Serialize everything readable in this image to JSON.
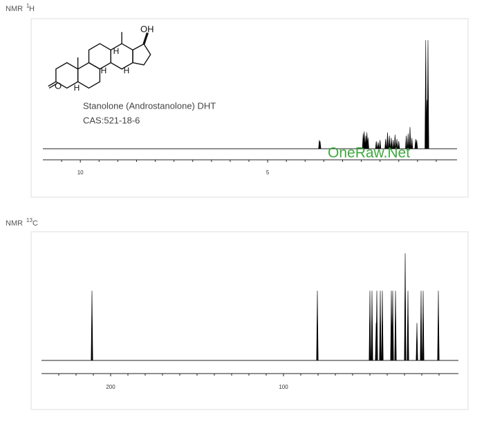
{
  "chart_data": [
    {
      "type": "spectrum",
      "label": "NMR",
      "mass_number": "1",
      "nucleus": "H",
      "compound": "Stanolone (Androstanolone) DHT",
      "cas": "CAS:521-18-6",
      "structure_labels": {
        "hydroxyl": "OH",
        "ketone": "O",
        "hydrogens": [
          "H",
          "H",
          "H",
          "H"
        ]
      },
      "watermark": "OneRaw.Net",
      "x": [
        3.62,
        3.6,
        2.45,
        2.42,
        2.38,
        2.35,
        2.32,
        2.1,
        2.05,
        2.0,
        1.85,
        1.8,
        1.75,
        1.7,
        1.65,
        1.6,
        1.55,
        1.5,
        1.3,
        1.25,
        1.2,
        1.15,
        1.05,
        1.02,
        0.78,
        0.75,
        0.72
      ],
      "values": [
        8,
        7,
        14,
        16,
        12,
        15,
        10,
        7,
        6,
        8,
        9,
        15,
        12,
        10,
        8,
        13,
        9,
        7,
        12,
        14,
        20,
        10,
        9,
        8,
        100,
        45,
        100
      ],
      "color": "#000000",
      "xlim": [
        11,
        0
      ],
      "ylim": [
        0,
        100
      ],
      "xticks": [
        10,
        5
      ],
      "xminorticks": [
        10.5,
        9.5,
        9,
        8.5,
        8,
        7.5,
        7,
        6.5,
        6,
        5.5,
        4.5,
        4,
        3.5,
        3,
        2.5,
        2,
        1.5,
        1,
        0.5
      ]
    },
    {
      "type": "spectrum",
      "label": "NMR",
      "mass_number": "13",
      "nucleus": "C",
      "x": [
        210.8,
        80.4,
        50.0,
        48.8,
        46.4,
        46.0,
        44.0,
        42.8,
        37.6,
        36.8,
        35.2,
        29.6,
        28.0,
        22.8,
        20.4,
        19.2,
        10.4
      ],
      "values": [
        65,
        65,
        65,
        65,
        35,
        65,
        65,
        65,
        65,
        65,
        65,
        100,
        65,
        35,
        65,
        65,
        65
      ],
      "color": "#000000",
      "xlim": [
        240,
        0
      ],
      "ylim": [
        0,
        100
      ],
      "xticks": [
        200,
        100
      ],
      "xminorticks": [
        230,
        220,
        210,
        190,
        180,
        170,
        160,
        150,
        140,
        130,
        120,
        110,
        90,
        80,
        70,
        60,
        50,
        40,
        30,
        20,
        10
      ]
    }
  ]
}
